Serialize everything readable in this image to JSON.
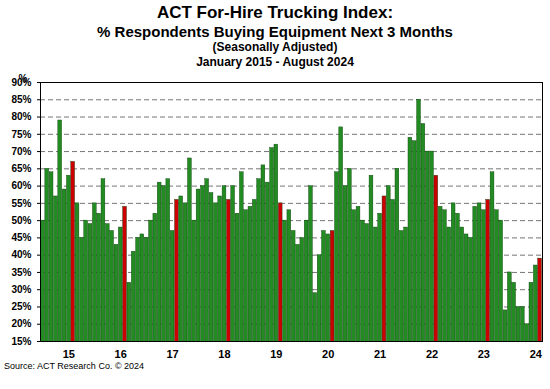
{
  "chart_data": {
    "type": "bar",
    "title": [
      "ACT For-Hire Trucking Index:",
      "% Respondents Buying Equipment Next 3 Months"
    ],
    "subtitle": [
      "(Seasonally Adjusted)",
      "January 2015 - August 2024"
    ],
    "caption": "Source: ACT Research Co. © 2024",
    "ylabel": "%",
    "categories": [
      null,
      null,
      null,
      null,
      null,
      null,
      "15",
      null,
      null,
      null,
      null,
      null,
      null,
      null,
      null,
      null,
      null,
      null,
      "16",
      null,
      null,
      null,
      null,
      null,
      null,
      null,
      null,
      null,
      null,
      null,
      "17",
      null,
      null,
      null,
      null,
      null,
      null,
      null,
      null,
      null,
      null,
      null,
      "18",
      null,
      null,
      null,
      null,
      null,
      null,
      null,
      null,
      null,
      null,
      null,
      "19",
      null,
      null,
      null,
      null,
      null,
      null,
      null,
      null,
      null,
      null,
      null,
      "20",
      null,
      null,
      null,
      null,
      null,
      null,
      null,
      null,
      null,
      null,
      null,
      "21",
      null,
      null,
      null,
      null,
      null,
      null,
      null,
      null,
      null,
      null,
      null,
      "22",
      null,
      null,
      null,
      null,
      null,
      null,
      null,
      null,
      null,
      null,
      null,
      "23",
      null,
      null,
      null,
      null,
      null,
      null,
      null,
      null,
      null,
      null,
      null,
      "24",
      null
    ],
    "values": [
      50,
      65,
      64,
      57,
      79,
      59,
      63,
      67,
      55,
      45,
      50,
      49,
      55,
      52,
      62,
      49,
      47,
      43,
      48,
      54,
      32,
      41,
      45,
      46,
      45,
      50,
      52,
      61,
      60,
      62,
      47,
      56,
      57,
      55,
      68,
      50,
      59,
      60,
      62,
      58,
      55,
      57,
      60,
      56,
      60,
      52,
      64,
      53,
      54,
      56,
      62,
      66,
      61,
      71,
      72,
      55,
      50,
      53,
      47,
      43,
      45,
      50,
      60,
      29,
      40,
      47,
      46,
      47,
      64,
      77,
      60,
      65,
      53,
      54,
      50,
      49,
      63,
      48,
      52,
      57,
      60,
      56,
      65,
      47,
      48,
      74,
      73,
      85,
      78,
      70,
      70,
      63,
      54,
      53,
      48,
      55,
      52,
      48,
      46,
      45,
      54,
      55,
      53,
      56,
      64,
      53,
      50,
      24,
      35,
      32,
      25,
      25,
      20,
      32,
      37,
      39
    ],
    "colors": [
      "#228B22",
      "#228B22",
      "#228B22",
      "#228B22",
      "#228B22",
      "#228B22",
      "#228B22",
      "#CC0000",
      "#228B22",
      "#228B22",
      "#228B22",
      "#228B22",
      "#228B22",
      "#228B22",
      "#228B22",
      "#228B22",
      "#228B22",
      "#228B22",
      "#228B22",
      "#CC0000",
      "#228B22",
      "#228B22",
      "#228B22",
      "#228B22",
      "#228B22",
      "#228B22",
      "#228B22",
      "#228B22",
      "#228B22",
      "#228B22",
      "#228B22",
      "#CC0000",
      "#228B22",
      "#228B22",
      "#228B22",
      "#228B22",
      "#228B22",
      "#228B22",
      "#228B22",
      "#228B22",
      "#228B22",
      "#228B22",
      "#228B22",
      "#CC0000",
      "#228B22",
      "#228B22",
      "#228B22",
      "#228B22",
      "#228B22",
      "#228B22",
      "#228B22",
      "#228B22",
      "#228B22",
      "#228B22",
      "#228B22",
      "#CC0000",
      "#228B22",
      "#228B22",
      "#228B22",
      "#228B22",
      "#228B22",
      "#228B22",
      "#228B22",
      "#228B22",
      "#228B22",
      "#228B22",
      "#228B22",
      "#CC0000",
      "#228B22",
      "#228B22",
      "#228B22",
      "#228B22",
      "#228B22",
      "#228B22",
      "#228B22",
      "#228B22",
      "#228B22",
      "#228B22",
      "#228B22",
      "#CC0000",
      "#228B22",
      "#228B22",
      "#228B22",
      "#228B22",
      "#228B22",
      "#228B22",
      "#228B22",
      "#228B22",
      "#228B22",
      "#228B22",
      "#228B22",
      "#CC0000",
      "#228B22",
      "#228B22",
      "#228B22",
      "#228B22",
      "#228B22",
      "#228B22",
      "#228B22",
      "#228B22",
      "#228B22",
      "#228B22",
      "#228B22",
      "#CC0000",
      "#228B22",
      "#228B22",
      "#228B22",
      "#228B22",
      "#228B22",
      "#228B22",
      "#228B22",
      "#228B22",
      "#228B22",
      "#228B22",
      "#228B22",
      "#CC0000"
    ],
    "ylim": [
      15,
      90
    ],
    "yticks": [
      {
        "value": 15,
        "label": "15%"
      },
      {
        "value": 20,
        "label": "20%"
      },
      {
        "value": 25,
        "label": "25%"
      },
      {
        "value": 30,
        "label": "30%"
      },
      {
        "value": 35,
        "label": "35%"
      },
      {
        "value": 40,
        "label": "40%"
      },
      {
        "value": 45,
        "label": "45%"
      },
      {
        "value": 50,
        "label": "50%"
      },
      {
        "value": 55,
        "label": "55%"
      },
      {
        "value": 60,
        "label": "60%"
      },
      {
        "value": 65,
        "label": "65%"
      },
      {
        "value": 70,
        "label": "70%"
      },
      {
        "value": 75,
        "label": "75%"
      },
      {
        "value": 80,
        "label": "80%"
      },
      {
        "value": 85,
        "label": "85%"
      },
      {
        "value": 90,
        "label": "90%"
      }
    ],
    "grid": true
  }
}
